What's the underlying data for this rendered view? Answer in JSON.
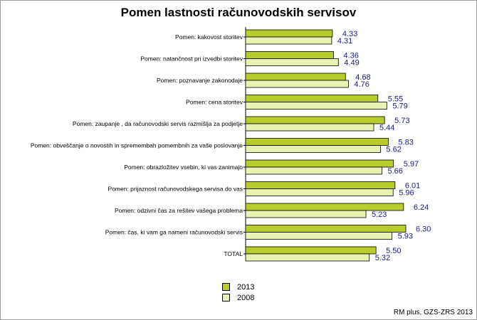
{
  "chart_data": {
    "type": "bar",
    "orientation": "horizontal",
    "title": "Pomen lastnosti računovodskih servisov",
    "categories": [
      "Pomen: kakovost storitev",
      "Pomen: natančnost pri izvedbi storitev",
      "Pomen: poznavanje zakonodaje",
      "Pomen: cena storitev",
      "Pomen: zaupanje , da računovodski servis razmišlja za podjetje",
      "Pomen: obveščanje o novostih in spremembah pomembnih za vaše poslovanje",
      "Pomen: obrazložitev vsebin, ki vas zanimajo",
      "Pomen: prijaznost računovodskega servisa do vas",
      "Pomen: odzivni čas za rešitev vašega problema",
      "Pomen: čas, ki vam ga nameni računovodski servis",
      "TOTAL"
    ],
    "series": [
      {
        "name": "2013",
        "color": "#b8cc2c",
        "values": [
          4.33,
          4.36,
          4.68,
          5.55,
          5.73,
          5.83,
          5.97,
          6.01,
          6.24,
          6.3,
          5.5
        ],
        "labels": [
          "4.33",
          "4.36",
          "4.68",
          "5.55",
          "5.73",
          "5.83",
          "5.97",
          "6.01",
          "6.24",
          "6.30",
          "5.50"
        ]
      },
      {
        "name": "2008",
        "color": "#eaf2b2",
        "values": [
          4.31,
          4.49,
          4.76,
          5.79,
          5.44,
          5.62,
          5.66,
          5.96,
          5.23,
          5.93,
          5.32
        ],
        "labels": [
          "4.31",
          "4.49",
          "4.76",
          "5.79",
          "5.44",
          "5.62",
          "5.66",
          "5.96",
          "5.23",
          "5.93",
          "5.32"
        ]
      }
    ],
    "grid": false,
    "legend_position": "bottom-center"
  },
  "legend": {
    "items": [
      {
        "label": "2013",
        "color": "#b8cc2c"
      },
      {
        "label": "2008",
        "color": "#eaf2b2"
      }
    ]
  },
  "source": "RM plus, GZS-ZRS 2013"
}
